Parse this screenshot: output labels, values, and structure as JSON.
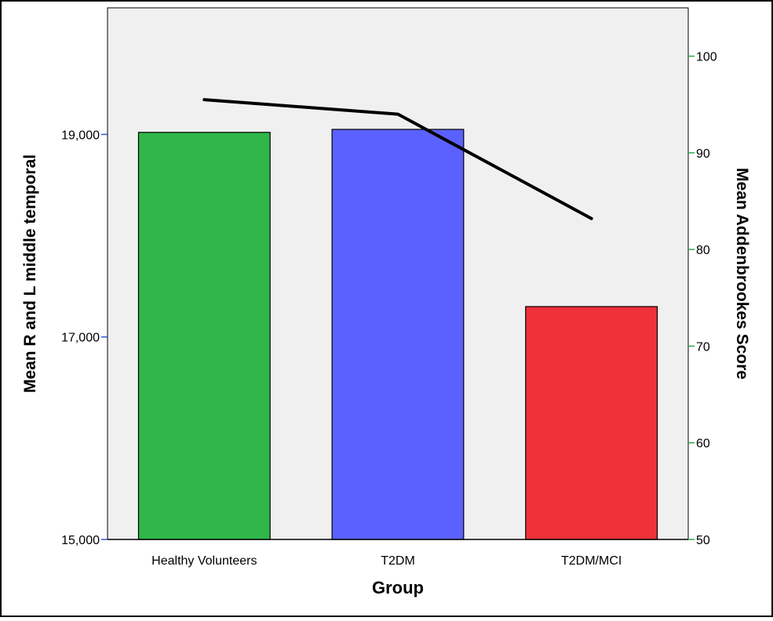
{
  "chart_data": {
    "type": "bar",
    "xlabel": "Group",
    "ylabel": "Mean R and L middle temporal",
    "y2label": "Mean Addenbrookes Score",
    "categories": [
      "Healthy Volunteers",
      "T2DM",
      "T2DM/MCI"
    ],
    "series": [
      {
        "axis": "left",
        "type": "bar",
        "values": [
          19020,
          19050,
          17300
        ],
        "colors": [
          "#30b74a",
          "#5b61ff",
          "#ef3139"
        ]
      },
      {
        "axis": "right",
        "type": "line",
        "values": [
          95.5,
          94,
          83.2
        ],
        "color": "#000000"
      }
    ],
    "ylim": [
      15000,
      20250
    ],
    "y2lim": [
      50,
      105
    ],
    "yticks": [
      {
        "value": 15000,
        "label": "15,000"
      },
      {
        "value": 17000,
        "label": "17,000"
      },
      {
        "value": 19000,
        "label": "19,000"
      }
    ],
    "y2ticks": [
      {
        "value": 50,
        "label": "50"
      },
      {
        "value": 60,
        "label": "60"
      },
      {
        "value": 70,
        "label": "70"
      },
      {
        "value": 80,
        "label": "80"
      },
      {
        "value": 90,
        "label": "90"
      },
      {
        "value": 100,
        "label": "100"
      }
    ],
    "plot_background": "#f0f0f0",
    "left_tick_color": "#2a5bd7",
    "right_tick_color": "#2aa94a",
    "grid": false,
    "legend": "none"
  }
}
